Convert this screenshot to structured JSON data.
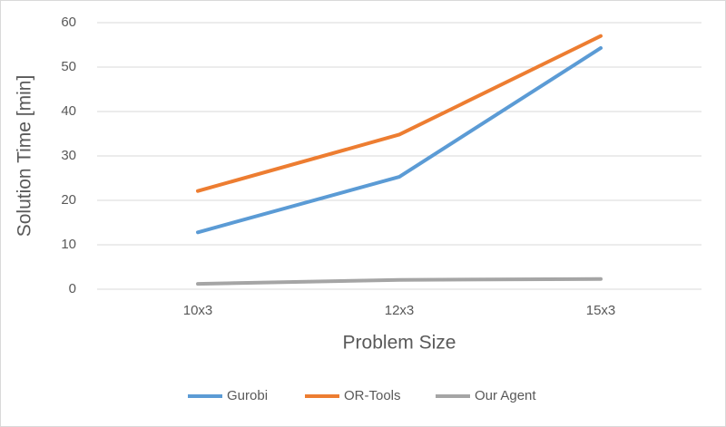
{
  "chart_data": {
    "type": "line",
    "x_label": "Problem Size",
    "y_label": "Solution Time [min]",
    "categories": [
      "10x3",
      "12x3",
      "15x3"
    ],
    "series": [
      {
        "name": "Gurobi",
        "color": "#5b9bd5",
        "values": [
          12.8,
          25.3,
          54.3
        ]
      },
      {
        "name": "OR-Tools",
        "color": "#ed7d31",
        "values": [
          22.1,
          34.8,
          57.0
        ]
      },
      {
        "name": "Our Agent",
        "color": "#a5a5a5",
        "values": [
          1.2,
          2.1,
          2.3
        ]
      }
    ],
    "ylim": [
      0,
      60
    ],
    "yticks": [
      0,
      10,
      20,
      30,
      40,
      50,
      60
    ],
    "grid": true,
    "legend": "bottom"
  }
}
